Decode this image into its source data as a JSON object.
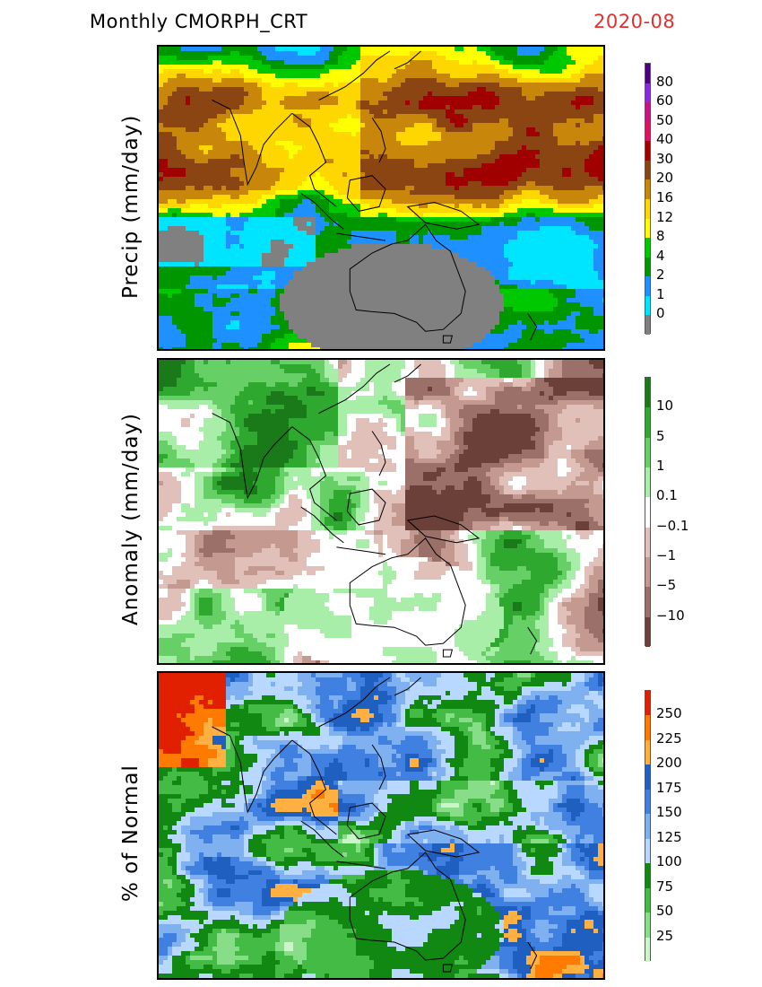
{
  "header": {
    "title": "Monthly CMORPH_CRT",
    "date": "2020-08"
  },
  "panels": [
    {
      "ylabel": "Precip (mm/day)",
      "colorbar": {
        "labels": [
          "80",
          "60",
          "50",
          "40",
          "30",
          "20",
          "16",
          "12",
          "8",
          "4",
          "2",
          "1",
          "0"
        ],
        "colors": [
          "#4b0082",
          "#8a2be2",
          "#c71585",
          "#e0115f",
          "#a00000",
          "#8b4513",
          "#c8860b",
          "#ffd700",
          "#ffff00",
          "#00c800",
          "#009600",
          "#1e90ff",
          "#00e5ff",
          "#808080"
        ]
      },
      "field": "precip"
    },
    {
      "ylabel": "Anomaly (mm/day)",
      "colorbar": {
        "labels": [
          "10",
          "5",
          "1",
          "0.1",
          "−0.1",
          "−1",
          "−5",
          "−10"
        ],
        "colors": [
          "#1a7a1a",
          "#2ea82e",
          "#66d066",
          "#a8eea8",
          "#ffffff",
          "#e0c0b8",
          "#c49a90",
          "#9a7068",
          "#6a4038"
        ]
      },
      "field": "anomaly"
    },
    {
      "ylabel": "% of Normal",
      "colorbar": {
        "labels": [
          "250",
          "225",
          "200",
          "175",
          "150",
          "125",
          "100",
          "75",
          "50",
          "25"
        ],
        "colors": [
          "#e02000",
          "#ff7a00",
          "#ffb040",
          "#1f5fc0",
          "#3f80e0",
          "#7fb0f0",
          "#b8d8ff",
          "#118811",
          "#44bb44",
          "#88dd88",
          "#ccf5cc"
        ]
      },
      "field": "percent"
    }
  ]
}
